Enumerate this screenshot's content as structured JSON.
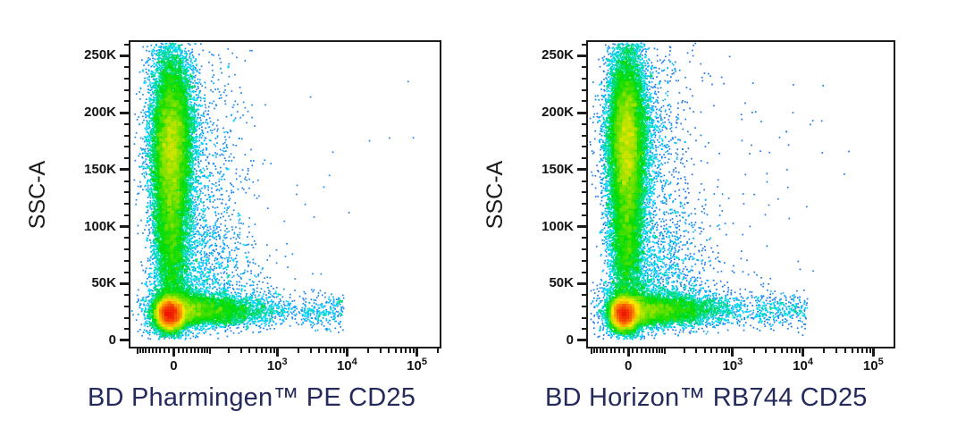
{
  "figure": {
    "background": "#ffffff"
  },
  "style": {
    "title_color": "#242a5c",
    "axis_color": "#1b1b1b",
    "tick_label_color": "#121212",
    "frame_color": "#1c1c1c"
  },
  "chart_data": [
    {
      "type": "scatter",
      "subtype": "flow_cytometry_pseudocolor_density",
      "title": "",
      "xlabel": "BD Pharmingen™ PE CD25",
      "ylabel": "SSC-A",
      "x_scale": {
        "type": "asinh",
        "a": 66,
        "zf": 0.14,
        "k": 0.0981
      },
      "y_range": [
        -5500,
        262144
      ],
      "x_ticks": [
        {
          "v": 0,
          "label": "0"
        },
        {
          "v": 1000,
          "base": "10",
          "exp": "3"
        },
        {
          "v": 10000,
          "base": "10",
          "exp": "4"
        },
        {
          "v": 100000,
          "base": "10",
          "exp": "5"
        }
      ],
      "x_mid": [
        -100,
        100
      ],
      "x_minor": [
        -90,
        -80,
        -70,
        -60,
        -50,
        -40,
        -30,
        -20,
        -10,
        10,
        20,
        30,
        40,
        50,
        60,
        70,
        80,
        90,
        200,
        300,
        400,
        500,
        600,
        700,
        800,
        900,
        2000,
        3000,
        4000,
        5000,
        6000,
        7000,
        8000,
        9000,
        20000,
        30000,
        40000,
        50000,
        60000,
        70000,
        80000,
        90000,
        200000
      ],
      "y_ticks": [
        {
          "v": 0,
          "label": "0"
        },
        {
          "v": 50000,
          "label": "50K"
        },
        {
          "v": 100000,
          "label": "100K"
        },
        {
          "v": 150000,
          "label": "150K"
        },
        {
          "v": 200000,
          "label": "200K"
        },
        {
          "v": 250000,
          "label": "250K"
        }
      ],
      "y_minor": [
        10000,
        20000,
        30000,
        40000,
        60000,
        70000,
        80000,
        90000,
        110000,
        120000,
        130000,
        140000,
        160000,
        170000,
        180000,
        190000,
        210000,
        220000,
        230000,
        240000,
        260000
      ],
      "colormap": [
        "#2d23dc",
        "#00d8ff",
        "#00dc00",
        "#ffe600",
        "#f01800"
      ],
      "seed": 20240,
      "populations": [
        {
          "name": "ssc-high column",
          "n": 14000,
          "x": {
            "type": "norm",
            "mu": 0.133,
            "sd": 0.034
          },
          "y": {
            "type": "norm",
            "mu": 172000,
            "sd": 42000
          }
        },
        {
          "name": "column hot core",
          "n": 1800,
          "x": {
            "type": "norm",
            "mu": 0.13,
            "sd": 0.021
          },
          "y": {
            "type": "norm",
            "mu": 168000,
            "sd": 30000
          }
        },
        {
          "name": "column lower",
          "n": 4500,
          "x": {
            "type": "norm",
            "mu": 0.131,
            "sd": 0.028
          },
          "y": {
            "type": "norm",
            "mu": 85000,
            "sd": 32000
          }
        },
        {
          "name": "column fringe",
          "n": 550,
          "x": {
            "type": "halfnorm",
            "mu": 0.17,
            "sd": 0.09,
            "max": 0.52
          },
          "y": {
            "type": "norm",
            "mu": 185000,
            "sd": 48000
          }
        },
        {
          "name": "lymphocytes CD25-neg",
          "n": 10000,
          "x": {
            "type": "norm",
            "mu": 0.127,
            "sd": 0.02
          },
          "y": {
            "type": "norm",
            "mu": 23500,
            "sd": 6500
          }
        },
        {
          "name": "lymphocyte halo",
          "n": 2200,
          "x": {
            "type": "norm",
            "mu": 0.133,
            "sd": 0.042
          },
          "y": {
            "type": "norm",
            "mu": 26000,
            "sd": 12000
          }
        },
        {
          "name": "CD25-pos arm",
          "n": 4300,
          "x": {
            "type": "halfnorm",
            "mu": 0.15,
            "sd": 0.15,
            "max": 0.62
          },
          "y": {
            "type": "norm",
            "mu": 26500,
            "sd": 7200
          }
        },
        {
          "name": "arm tail",
          "n": 260,
          "x": {
            "type": "uniform",
            "min": 0.55,
            "max": 0.69
          },
          "y": {
            "type": "norm",
            "mu": 26000,
            "sd": 8000
          }
        },
        {
          "name": "mid cloud",
          "n": 1600,
          "x": {
            "type": "halfnorm",
            "mu": 0.16,
            "sd": 0.12,
            "max": 0.56
          },
          "y": {
            "type": "halfnorm",
            "mu": 14000,
            "sd": 60000,
            "max": 250000
          }
        },
        {
          "name": "outliers",
          "n": 16,
          "x": {
            "type": "uniform",
            "min": 0.3,
            "max": 0.9
          },
          "y": {
            "type": "uniform",
            "min": 15000,
            "max": 235000
          }
        },
        {
          "name": "far outlier",
          "type": "fixed",
          "points": [
            [
              0.915,
              178000
            ]
          ]
        }
      ]
    },
    {
      "type": "scatter",
      "subtype": "flow_cytometry_pseudocolor_density",
      "title": "",
      "xlabel": "BD Horizon™ RB744 CD25",
      "ylabel": "SSC-A",
      "x_scale": {
        "type": "asinh",
        "a": 66,
        "zf": 0.132,
        "k": 0.1
      },
      "y_range": [
        -5500,
        262144
      ],
      "x_ticks": [
        {
          "v": 0,
          "label": "0"
        },
        {
          "v": 1000,
          "base": "10",
          "exp": "3"
        },
        {
          "v": 10000,
          "base": "10",
          "exp": "4"
        },
        {
          "v": 100000,
          "base": "10",
          "exp": "5"
        }
      ],
      "x_mid": [
        -100,
        100
      ],
      "x_minor": [
        -90,
        -80,
        -70,
        -60,
        -50,
        -40,
        -30,
        -20,
        -10,
        10,
        20,
        30,
        40,
        50,
        60,
        70,
        80,
        90,
        200,
        300,
        400,
        500,
        600,
        700,
        800,
        900,
        2000,
        3000,
        4000,
        5000,
        6000,
        7000,
        8000,
        9000,
        20000,
        30000,
        40000,
        50000,
        60000,
        70000,
        80000,
        90000,
        200000
      ],
      "y_ticks": [
        {
          "v": 0,
          "label": "0"
        },
        {
          "v": 50000,
          "label": "50K"
        },
        {
          "v": 100000,
          "label": "100K"
        },
        {
          "v": 150000,
          "label": "150K"
        },
        {
          "v": 200000,
          "label": "200K"
        },
        {
          "v": 250000,
          "label": "250K"
        }
      ],
      "y_minor": [
        10000,
        20000,
        30000,
        40000,
        60000,
        70000,
        80000,
        90000,
        110000,
        120000,
        130000,
        140000,
        160000,
        170000,
        180000,
        190000,
        210000,
        220000,
        230000,
        240000,
        260000
      ],
      "colormap": [
        "#2d23dc",
        "#00d8ff",
        "#00dc00",
        "#ffe600",
        "#f01800"
      ],
      "seed": 909,
      "populations": [
        {
          "name": "ssc-high column",
          "n": 14000,
          "x": {
            "type": "norm",
            "mu": 0.127,
            "sd": 0.033
          },
          "y": {
            "type": "norm",
            "mu": 175000,
            "sd": 42000
          }
        },
        {
          "name": "column hot core",
          "n": 2600,
          "x": {
            "type": "norm",
            "mu": 0.127,
            "sd": 0.019
          },
          "y": {
            "type": "norm",
            "mu": 172000,
            "sd": 30000
          }
        },
        {
          "name": "column lower",
          "n": 4500,
          "x": {
            "type": "norm",
            "mu": 0.125,
            "sd": 0.027
          },
          "y": {
            "type": "norm",
            "mu": 85000,
            "sd": 32000
          }
        },
        {
          "name": "column fringe",
          "n": 600,
          "x": {
            "type": "halfnorm",
            "mu": 0.165,
            "sd": 0.09,
            "max": 0.55
          },
          "y": {
            "type": "norm",
            "mu": 185000,
            "sd": 48000
          }
        },
        {
          "name": "lymphocytes CD25-neg",
          "n": 10000,
          "x": {
            "type": "norm",
            "mu": 0.118,
            "sd": 0.02
          },
          "y": {
            "type": "norm",
            "mu": 23500,
            "sd": 6500
          }
        },
        {
          "name": "lymphocyte halo",
          "n": 2200,
          "x": {
            "type": "norm",
            "mu": 0.125,
            "sd": 0.042
          },
          "y": {
            "type": "norm",
            "mu": 26000,
            "sd": 12000
          }
        },
        {
          "name": "CD25-pos arm",
          "n": 4600,
          "x": {
            "type": "halfnorm",
            "mu": 0.145,
            "sd": 0.155,
            "max": 0.64
          },
          "y": {
            "type": "norm",
            "mu": 26500,
            "sd": 7200
          }
        },
        {
          "name": "arm tail",
          "n": 300,
          "x": {
            "type": "uniform",
            "min": 0.55,
            "max": 0.72
          },
          "y": {
            "type": "norm",
            "mu": 26000,
            "sd": 8000
          }
        },
        {
          "name": "mid cloud",
          "n": 1700,
          "x": {
            "type": "halfnorm",
            "mu": 0.155,
            "sd": 0.12,
            "max": 0.58
          },
          "y": {
            "type": "halfnorm",
            "mu": 14000,
            "sd": 60000,
            "max": 250000
          }
        },
        {
          "name": "high-x scatter",
          "n": 48,
          "x": {
            "type": "halfnorm",
            "mu": 0.5,
            "sd": 0.13,
            "max": 0.87
          },
          "y": {
            "type": "uniform",
            "min": 15000,
            "max": 210000
          }
        },
        {
          "name": "outliers",
          "n": 10,
          "x": {
            "type": "uniform",
            "min": 0.35,
            "max": 0.86
          },
          "y": {
            "type": "uniform",
            "min": 15000,
            "max": 245000
          }
        },
        {
          "name": "far outliers",
          "type": "fixed",
          "points": [
            [
              0.854,
              166000
            ],
            [
              0.737,
              61000
            ]
          ]
        }
      ]
    }
  ]
}
